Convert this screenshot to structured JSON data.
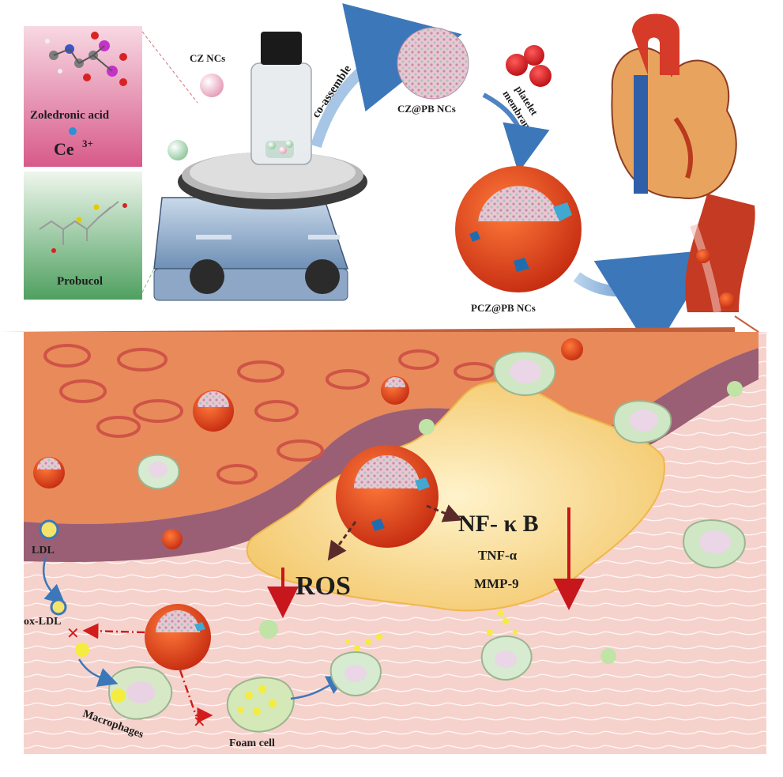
{
  "panel_top": {
    "molecule_1_name": "Zoledronic acid",
    "ion_label": "Ce",
    "ion_charge": "3+",
    "molecule_2_name": "Probucol",
    "cz_label": "CZ NCs",
    "assemble_label": "co-assemble",
    "czpb_label": "CZ@PB NCs",
    "membrane_label_1": "platelet",
    "membrane_label_2": "membrane",
    "pczpb_label": "PCZ@PB NCs"
  },
  "panel_bottom": {
    "ldl_label": "LDL",
    "oxldl_label": "ox-LDL",
    "macrophage_label": "Macrophages",
    "foam_label": "Foam cell",
    "ros_label": "ROS",
    "nfkb_label": "NF- κ B",
    "tnf_label": "TNF-α",
    "mmp_label": "MMP-9"
  },
  "colors": {
    "pink_panel": "#e3a0b6",
    "green_panel": "#a9cfa6",
    "nanoparticle_red": "#e0401c",
    "vessel_orange": "#e88a5a",
    "inhibit_red": "#c8161d",
    "arrow_blue": "#3c78b9",
    "plaque_yellow": "#f7d98a"
  }
}
